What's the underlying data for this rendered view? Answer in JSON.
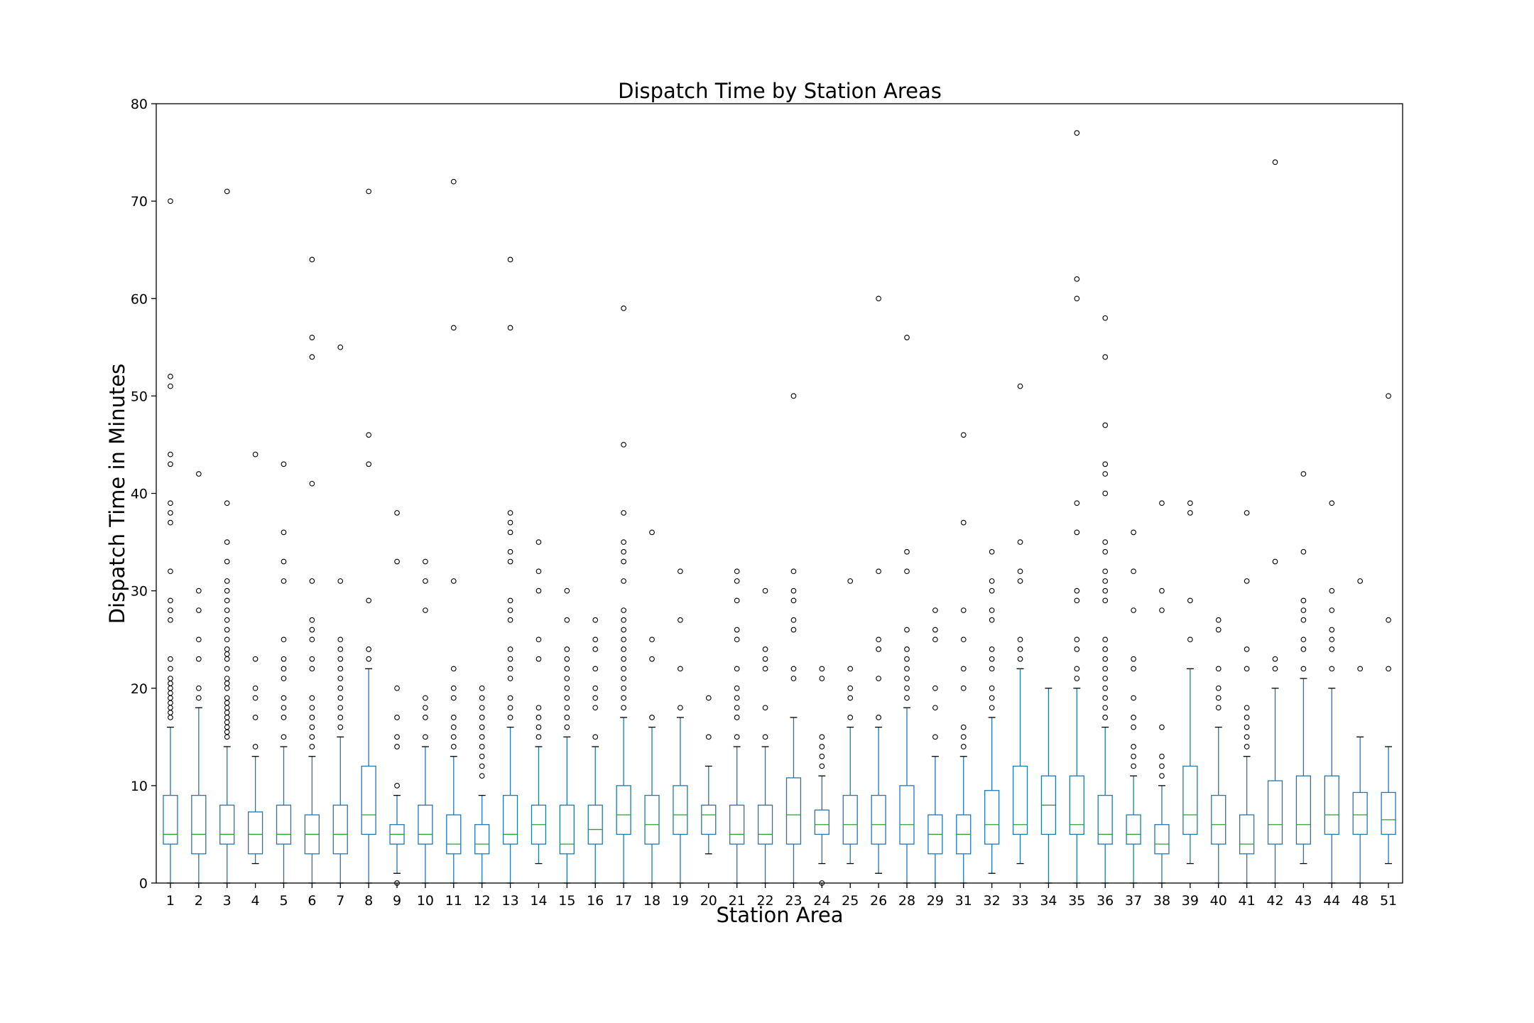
{
  "chart_data": {
    "type": "boxplot",
    "title": "Dispatch Time by Station Areas",
    "xlabel": "Station Area",
    "ylabel": "Dispatch Time in Minutes",
    "ylim": [
      0,
      80
    ],
    "yticks": [
      0,
      10,
      20,
      30,
      40,
      50,
      60,
      70,
      80
    ],
    "grid": false,
    "colors": {
      "box": "#1f77b4",
      "median": "#2ca02c",
      "flier": "#000000",
      "frame": "#000000"
    },
    "categories": [
      "1",
      "2",
      "3",
      "4",
      "5",
      "6",
      "7",
      "8",
      "9",
      "10",
      "11",
      "12",
      "13",
      "14",
      "15",
      "16",
      "17",
      "18",
      "19",
      "20",
      "21",
      "22",
      "23",
      "24",
      "25",
      "26",
      "28",
      "29",
      "31",
      "32",
      "33",
      "34",
      "35",
      "36",
      "37",
      "38",
      "39",
      "40",
      "41",
      "42",
      "43",
      "44",
      "48",
      "51"
    ],
    "boxes": [
      {
        "min": 0,
        "q1": 4,
        "median": 5,
        "q3": 9,
        "max": 16,
        "fliers": [
          17,
          17.5,
          18,
          18.5,
          19,
          19.5,
          20,
          20.5,
          21,
          22,
          23,
          27,
          28,
          29,
          32,
          37,
          38,
          39,
          43,
          44,
          51,
          52,
          70
        ]
      },
      {
        "min": 0,
        "q1": 3,
        "median": 5,
        "q3": 9,
        "max": 18,
        "fliers": [
          19,
          20,
          23,
          25,
          28,
          30,
          42
        ]
      },
      {
        "min": 0,
        "q1": 4,
        "median": 5,
        "q3": 8,
        "max": 14,
        "fliers": [
          15,
          15.5,
          16,
          16.5,
          17,
          17.5,
          18,
          18.5,
          19,
          20,
          20.5,
          21,
          22,
          23,
          23.5,
          24,
          25,
          26,
          27,
          28,
          29,
          30,
          31,
          33,
          35,
          39,
          71
        ]
      },
      {
        "min": 2,
        "q1": 3,
        "median": 5,
        "q3": 7.3,
        "max": 13,
        "fliers": [
          14,
          17,
          19,
          20,
          23,
          44
        ]
      },
      {
        "min": 0,
        "q1": 4,
        "median": 5,
        "q3": 8,
        "max": 14,
        "fliers": [
          15,
          17,
          18,
          19,
          21,
          22,
          23,
          25,
          31,
          33,
          36,
          43
        ]
      },
      {
        "min": 0,
        "q1": 3,
        "median": 5,
        "q3": 7,
        "max": 13,
        "fliers": [
          14,
          15,
          16,
          17,
          18,
          19,
          22,
          23,
          25,
          26,
          27,
          31,
          41,
          54,
          56,
          64
        ]
      },
      {
        "min": 0,
        "q1": 3,
        "median": 5,
        "q3": 8,
        "max": 15,
        "fliers": [
          16,
          17,
          18,
          19,
          20,
          21,
          22,
          23,
          24,
          25,
          31,
          55
        ]
      },
      {
        "min": 0,
        "q1": 5,
        "median": 7,
        "q3": 12,
        "max": 22,
        "fliers": [
          23,
          24,
          29,
          43,
          46,
          71
        ]
      },
      {
        "min": 1,
        "q1": 4,
        "median": 5,
        "q3": 6,
        "max": 9,
        "fliers": [
          0,
          10,
          14,
          15,
          17,
          20,
          33,
          38
        ]
      },
      {
        "min": 0,
        "q1": 4,
        "median": 5,
        "q3": 8,
        "max": 14,
        "fliers": [
          15,
          17,
          18,
          19,
          28,
          31,
          33
        ]
      },
      {
        "min": 0,
        "q1": 3,
        "median": 4,
        "q3": 7,
        "max": 13,
        "fliers": [
          14,
          15,
          16,
          17,
          19,
          20,
          22,
          31,
          57,
          72
        ]
      },
      {
        "min": 0,
        "q1": 3,
        "median": 4,
        "q3": 6,
        "max": 9,
        "fliers": [
          11,
          12,
          13,
          14,
          15,
          16,
          17,
          18,
          19,
          20
        ]
      },
      {
        "min": 0,
        "q1": 4,
        "median": 5,
        "q3": 9,
        "max": 16,
        "fliers": [
          17,
          18,
          19,
          21,
          22,
          23,
          24,
          27,
          28,
          29,
          33,
          34,
          36,
          37,
          38,
          57,
          64
        ]
      },
      {
        "min": 2,
        "q1": 4,
        "median": 6,
        "q3": 8,
        "max": 14,
        "fliers": [
          15,
          16,
          17,
          18,
          23,
          25,
          30,
          32,
          35
        ]
      },
      {
        "min": 0,
        "q1": 3,
        "median": 4,
        "q3": 8,
        "max": 15,
        "fliers": [
          16,
          17,
          18,
          19,
          20,
          21,
          22,
          23,
          24,
          27,
          30
        ]
      },
      {
        "min": 0,
        "q1": 4,
        "median": 5.5,
        "q3": 8,
        "max": 14,
        "fliers": [
          15,
          18,
          19,
          20,
          22,
          24,
          25,
          27
        ]
      },
      {
        "min": 0,
        "q1": 5,
        "median": 7,
        "q3": 10,
        "max": 17,
        "fliers": [
          18,
          19,
          20,
          21,
          22,
          23,
          24,
          25,
          26,
          27,
          28,
          31,
          33,
          34,
          35,
          38,
          45,
          59
        ]
      },
      {
        "min": 0,
        "q1": 4,
        "median": 6,
        "q3": 9,
        "max": 16,
        "fliers": [
          17,
          23,
          25,
          36
        ]
      },
      {
        "min": 0,
        "q1": 5,
        "median": 7,
        "q3": 10,
        "max": 17,
        "fliers": [
          18,
          22,
          27,
          32
        ]
      },
      {
        "min": 3,
        "q1": 5,
        "median": 7,
        "q3": 8,
        "max": 12,
        "fliers": [
          15,
          19
        ]
      },
      {
        "min": 0,
        "q1": 4,
        "median": 5,
        "q3": 8,
        "max": 14,
        "fliers": [
          15,
          17,
          18,
          19,
          20,
          22,
          25,
          26,
          29,
          31,
          32
        ]
      },
      {
        "min": 0,
        "q1": 4,
        "median": 5,
        "q3": 8,
        "max": 14,
        "fliers": [
          15,
          18,
          22,
          23,
          24,
          30
        ]
      },
      {
        "min": 0,
        "q1": 4,
        "median": 7,
        "q3": 10.8,
        "max": 17,
        "fliers": [
          21,
          22,
          26,
          27,
          29,
          30,
          32,
          50
        ]
      },
      {
        "min": 2,
        "q1": 5,
        "median": 6,
        "q3": 7.5,
        "max": 11,
        "fliers": [
          0,
          12,
          13,
          14,
          15,
          21,
          22
        ]
      },
      {
        "min": 2,
        "q1": 4,
        "median": 6,
        "q3": 9,
        "max": 16,
        "fliers": [
          17,
          19,
          20,
          22,
          31
        ]
      },
      {
        "min": 1,
        "q1": 4,
        "median": 6,
        "q3": 9,
        "max": 16,
        "fliers": [
          17,
          21,
          24,
          25,
          32,
          60
        ]
      },
      {
        "min": 0,
        "q1": 4,
        "median": 6,
        "q3": 10,
        "max": 18,
        "fliers": [
          19,
          20,
          21,
          22,
          23,
          24,
          26,
          32,
          34,
          56
        ]
      },
      {
        "min": 0,
        "q1": 3,
        "median": 5,
        "q3": 7,
        "max": 13,
        "fliers": [
          15,
          18,
          20,
          25,
          26,
          28
        ]
      },
      {
        "min": 0,
        "q1": 3,
        "median": 5,
        "q3": 7,
        "max": 13,
        "fliers": [
          14,
          15,
          16,
          20,
          22,
          25,
          28,
          37,
          46
        ]
      },
      {
        "min": 1,
        "q1": 4,
        "median": 6,
        "q3": 9.5,
        "max": 17,
        "fliers": [
          18,
          19,
          20,
          22,
          23,
          24,
          27,
          28,
          30,
          31,
          34
        ]
      },
      {
        "min": 2,
        "q1": 5,
        "median": 6,
        "q3": 12,
        "max": 22,
        "fliers": [
          23,
          24,
          25,
          31,
          32,
          35,
          51
        ]
      },
      {
        "min": 0,
        "q1": 5,
        "median": 8,
        "q3": 11,
        "max": 20,
        "fliers": []
      },
      {
        "min": 0,
        "q1": 5,
        "median": 6,
        "q3": 11,
        "max": 20,
        "fliers": [
          21,
          22,
          24,
          25,
          29,
          30,
          36,
          39,
          60,
          62,
          77
        ]
      },
      {
        "min": 0,
        "q1": 4,
        "median": 5,
        "q3": 9,
        "max": 16,
        "fliers": [
          17,
          18,
          19,
          20,
          21,
          22,
          23,
          24,
          25,
          29,
          30,
          31,
          32,
          34,
          35,
          40,
          42,
          43,
          47,
          54,
          58
        ]
      },
      {
        "min": 0,
        "q1": 4,
        "median": 5,
        "q3": 7,
        "max": 11,
        "fliers": [
          12,
          13,
          14,
          16,
          17,
          19,
          22,
          23,
          28,
          32,
          36
        ]
      },
      {
        "min": 0,
        "q1": 3,
        "median": 4,
        "q3": 6,
        "max": 10,
        "fliers": [
          11,
          12,
          13,
          16,
          28,
          30,
          39
        ]
      },
      {
        "min": 2,
        "q1": 5,
        "median": 7,
        "q3": 12,
        "max": 22,
        "fliers": [
          25,
          29,
          38,
          39
        ]
      },
      {
        "min": 0,
        "q1": 4,
        "median": 6,
        "q3": 9,
        "max": 16,
        "fliers": [
          18,
          19,
          20,
          22,
          26,
          27
        ]
      },
      {
        "min": 0,
        "q1": 3,
        "median": 4,
        "q3": 7,
        "max": 13,
        "fliers": [
          14,
          15,
          16,
          17,
          18,
          22,
          24,
          31,
          38
        ]
      },
      {
        "min": 0,
        "q1": 4,
        "median": 6,
        "q3": 10.5,
        "max": 20,
        "fliers": [
          22,
          23,
          33,
          74
        ]
      },
      {
        "min": 2,
        "q1": 4,
        "median": 6,
        "q3": 11,
        "max": 21,
        "fliers": [
          22,
          24,
          25,
          27,
          28,
          29,
          34,
          42
        ]
      },
      {
        "min": 0,
        "q1": 5,
        "median": 7,
        "q3": 11,
        "max": 20,
        "fliers": [
          22,
          24,
          25,
          26,
          28,
          30,
          39
        ]
      },
      {
        "min": 0,
        "q1": 5,
        "median": 7,
        "q3": 9.3,
        "max": 15,
        "fliers": [
          22,
          31
        ]
      },
      {
        "min": 2,
        "q1": 5,
        "median": 6.5,
        "q3": 9.3,
        "max": 14,
        "fliers": [
          22,
          27,
          50
        ]
      }
    ]
  }
}
